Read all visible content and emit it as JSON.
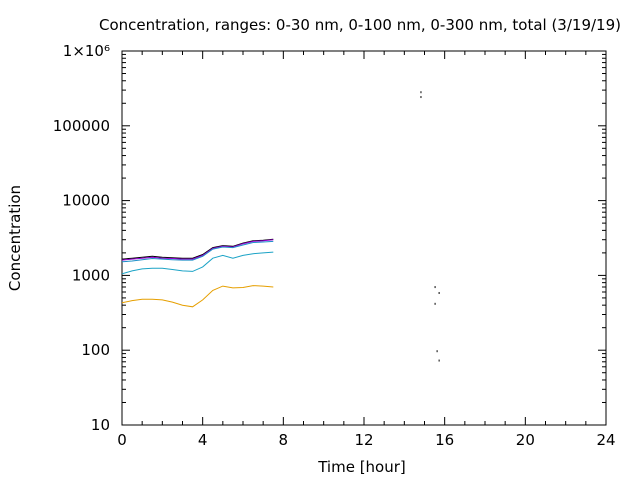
{
  "chart_data": {
    "type": "line",
    "title": "Concentration, ranges: 0-30 nm, 0-100 nm, 0-300 nm, total (3/19/19)",
    "xlabel": "Time [hour]",
    "ylabel": "Concentration",
    "xlim": [
      0,
      24
    ],
    "ylim": [
      10,
      1000000
    ],
    "yscale": "log",
    "grid": false,
    "x_ticks": [
      0,
      4,
      8,
      12,
      16,
      20,
      24
    ],
    "x_tick_labels": [
      "0",
      "4",
      "8",
      "12",
      "16",
      "20",
      "24"
    ],
    "y_ticks": [
      10,
      100,
      1000,
      10000,
      100000,
      1000000
    ],
    "y_tick_labels": [
      "10",
      "100",
      "1000",
      "10000",
      "100000",
      "1×10⁶"
    ],
    "series": [
      {
        "color": "#000000",
        "x": [
          0,
          0.5,
          1,
          1.5,
          2,
          2.5,
          3,
          3.5,
          4,
          4.5,
          5,
          5.5,
          6,
          6.5,
          7,
          7.5
        ],
        "y": [
          1650,
          1700,
          1750,
          1800,
          1750,
          1720,
          1700,
          1700,
          1900,
          2350,
          2500,
          2450,
          2700,
          2900,
          2950,
          3050
        ]
      },
      {
        "color": "#9400d3",
        "x": [
          0,
          0.5,
          1,
          1.5,
          2,
          2.5,
          3,
          3.5,
          4,
          4.5,
          5,
          5.5,
          6,
          6.5,
          7,
          7.5
        ],
        "y": [
          1600,
          1650,
          1700,
          1750,
          1700,
          1680,
          1650,
          1650,
          1850,
          2300,
          2450,
          2400,
          2650,
          2850,
          2900,
          3000
        ]
      },
      {
        "color": "#1e90c8",
        "x": [
          0,
          0.5,
          1,
          1.5,
          2,
          2.5,
          3,
          3.5,
          4,
          4.5,
          5,
          5.5,
          6,
          6.5,
          7,
          7.5
        ],
        "y": [
          1520,
          1560,
          1620,
          1680,
          1650,
          1620,
          1600,
          1600,
          1800,
          2250,
          2400,
          2350,
          2550,
          2750,
          2800,
          2850
        ]
      },
      {
        "color": "#1ba3c6",
        "x": [
          0,
          0.5,
          1,
          1.5,
          2,
          2.5,
          3,
          3.5,
          4,
          4.5,
          5,
          5.5,
          6,
          6.5,
          7,
          7.5
        ],
        "y": [
          1050,
          1150,
          1220,
          1250,
          1250,
          1200,
          1150,
          1130,
          1300,
          1700,
          1850,
          1700,
          1850,
          1950,
          2000,
          2050
        ]
      },
      {
        "color": "#e69f00",
        "x": [
          0,
          0.5,
          1,
          1.5,
          2,
          2.5,
          3,
          3.5,
          4,
          4.5,
          5,
          5.5,
          6,
          6.5,
          7,
          7.5
        ],
        "y": [
          430,
          460,
          480,
          480,
          470,
          440,
          400,
          380,
          470,
          630,
          720,
          680,
          690,
          730,
          720,
          700
        ]
      }
    ],
    "scattered_points": [
      {
        "x": 14.8,
        "y": 290000
      },
      {
        "x": 14.8,
        "y": 250000
      },
      {
        "x": 15.5,
        "y": 720
      },
      {
        "x": 15.7,
        "y": 600
      },
      {
        "x": 15.5,
        "y": 430
      },
      {
        "x": 15.6,
        "y": 100
      },
      {
        "x": 15.7,
        "y": 75
      }
    ]
  }
}
